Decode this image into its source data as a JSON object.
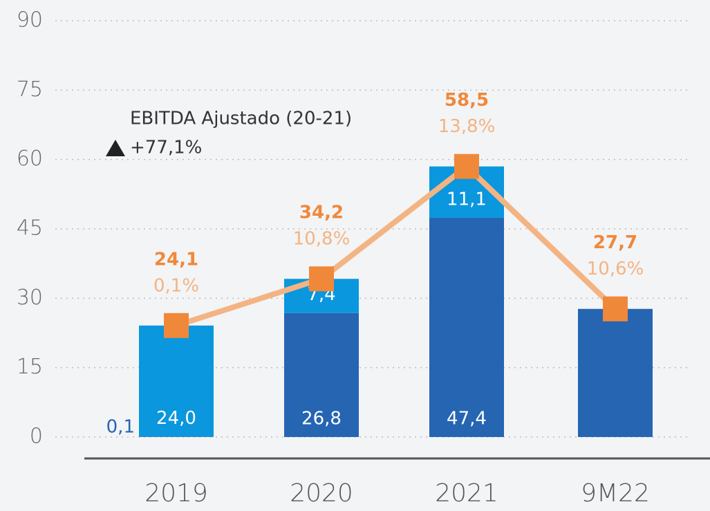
{
  "chart_data": {
    "type": "bar",
    "categories": [
      "2019",
      "2020",
      "2021",
      "9M22"
    ],
    "series": [
      {
        "color": "#2565b2",
        "values": [
          0.1,
          26.8,
          47.4,
          27.7
        ],
        "value_labels": [
          "0,1",
          "26,8",
          "47,4",
          null
        ]
      },
      {
        "color": "#0a97dd",
        "values": [
          24.0,
          7.4,
          11.1,
          null
        ],
        "value_labels": [
          "24,0",
          "7,4",
          "11,1",
          null
        ]
      },
      {
        "type": "line",
        "color": "#f0883a",
        "line_color": "#f3b483",
        "values": [
          24.1,
          34.2,
          58.5,
          27.7
        ],
        "value_labels": [
          "24,1",
          "34,2",
          "58,5",
          "27,7"
        ]
      }
    ],
    "margin_labels": [
      "0,1%",
      "10,8%",
      "13,8%",
      "10,6%"
    ],
    "annotation": {
      "title": "EBITDA Ajustado (20-21)",
      "text": "+77,1%"
    },
    "ylim": [
      0,
      90
    ],
    "yticks": [
      0,
      15,
      30,
      45,
      60,
      75,
      90
    ],
    "grid": true
  }
}
